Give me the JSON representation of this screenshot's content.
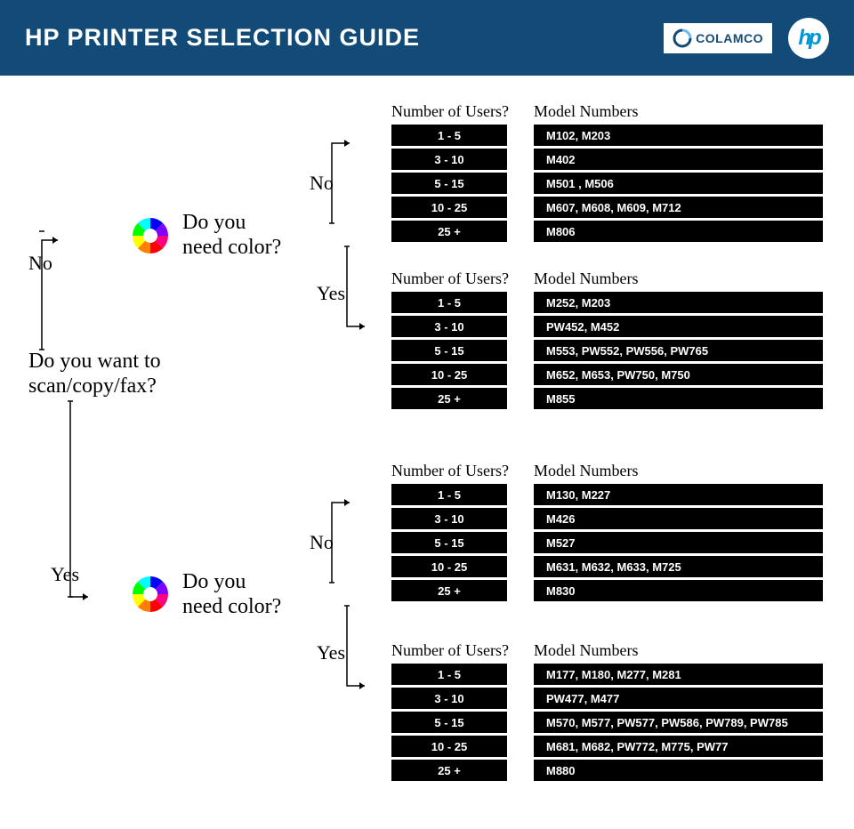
{
  "header": {
    "title": "HP PRINTER SELECTION GUIDE",
    "colamco_label": "COLAMCO",
    "hp_label": "hp",
    "bg_color": "#124b77",
    "text_color": "#ffffff"
  },
  "questions": {
    "scan": "Do you want to\nscan/copy/fax?",
    "color": "Do you\nneed color?"
  },
  "labels": {
    "no": "No",
    "yes": "Yes"
  },
  "columns": {
    "users": "Number of Users?",
    "models": "Model Numbers"
  },
  "user_ranges": [
    "1 - 5",
    "3 - 10",
    "5 - 15",
    "10 - 25",
    "25 +"
  ],
  "groups": [
    {
      "id": "noscan-nocolor",
      "models": [
        "M102, M203",
        "M402",
        "M501 , M506",
        "M607, M608, M609, M712",
        "M806"
      ]
    },
    {
      "id": "noscan-yescolor",
      "models": [
        "M252, M203",
        "PW452, M452",
        "M553, PW552, PW556, PW765",
        "M652, M653, PW750, M750",
        "M855"
      ]
    },
    {
      "id": "yesscan-nocolor",
      "models": [
        "M130, M227",
        "M426",
        "M527",
        "M631, M632, M633, M725",
        "M830"
      ]
    },
    {
      "id": "yesscan-yescolor",
      "models": [
        "M177, M180, M277, M281",
        "PW477, M477",
        "M570, M577, PW577, PW586, PW789, PW785",
        "M681, M682, PW772, M775, PW77",
        "M880"
      ]
    }
  ],
  "style": {
    "cell_bg": "#000000",
    "cell_text": "#ffffff",
    "page_bg": "#ffffff",
    "hp_blue": "#0096d6"
  }
}
